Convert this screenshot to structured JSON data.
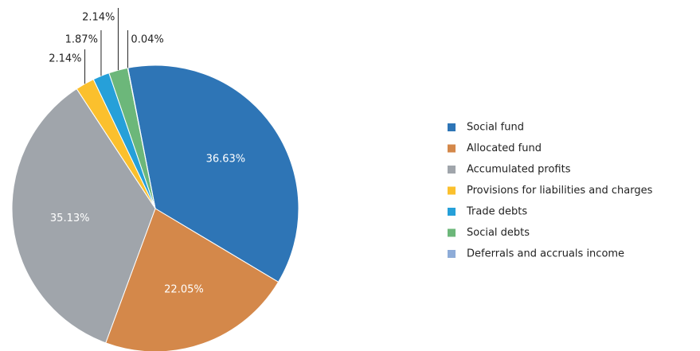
{
  "chart_data": {
    "type": "pie",
    "categories": [
      "Social fund",
      "Allocated fund",
      "Accumulated profits",
      "Provisions for liabilities and charges",
      "Trade debts",
      "Social debts",
      "Deferrals and accruals income"
    ],
    "values": [
      36.63,
      22.05,
      35.13,
      2.14,
      1.87,
      2.14,
      0.04
    ],
    "value_labels": [
      "36.63%",
      "22.05%",
      "35.13%",
      "2.14%",
      "1.87%",
      "2.14%",
      "0.04%"
    ],
    "colors": [
      "#2e75b6",
      "#d4884a",
      "#a0a5ab",
      "#fbc02d",
      "#26a0d9",
      "#6cb77a",
      "#8eacd8"
    ],
    "legend": "right"
  }
}
